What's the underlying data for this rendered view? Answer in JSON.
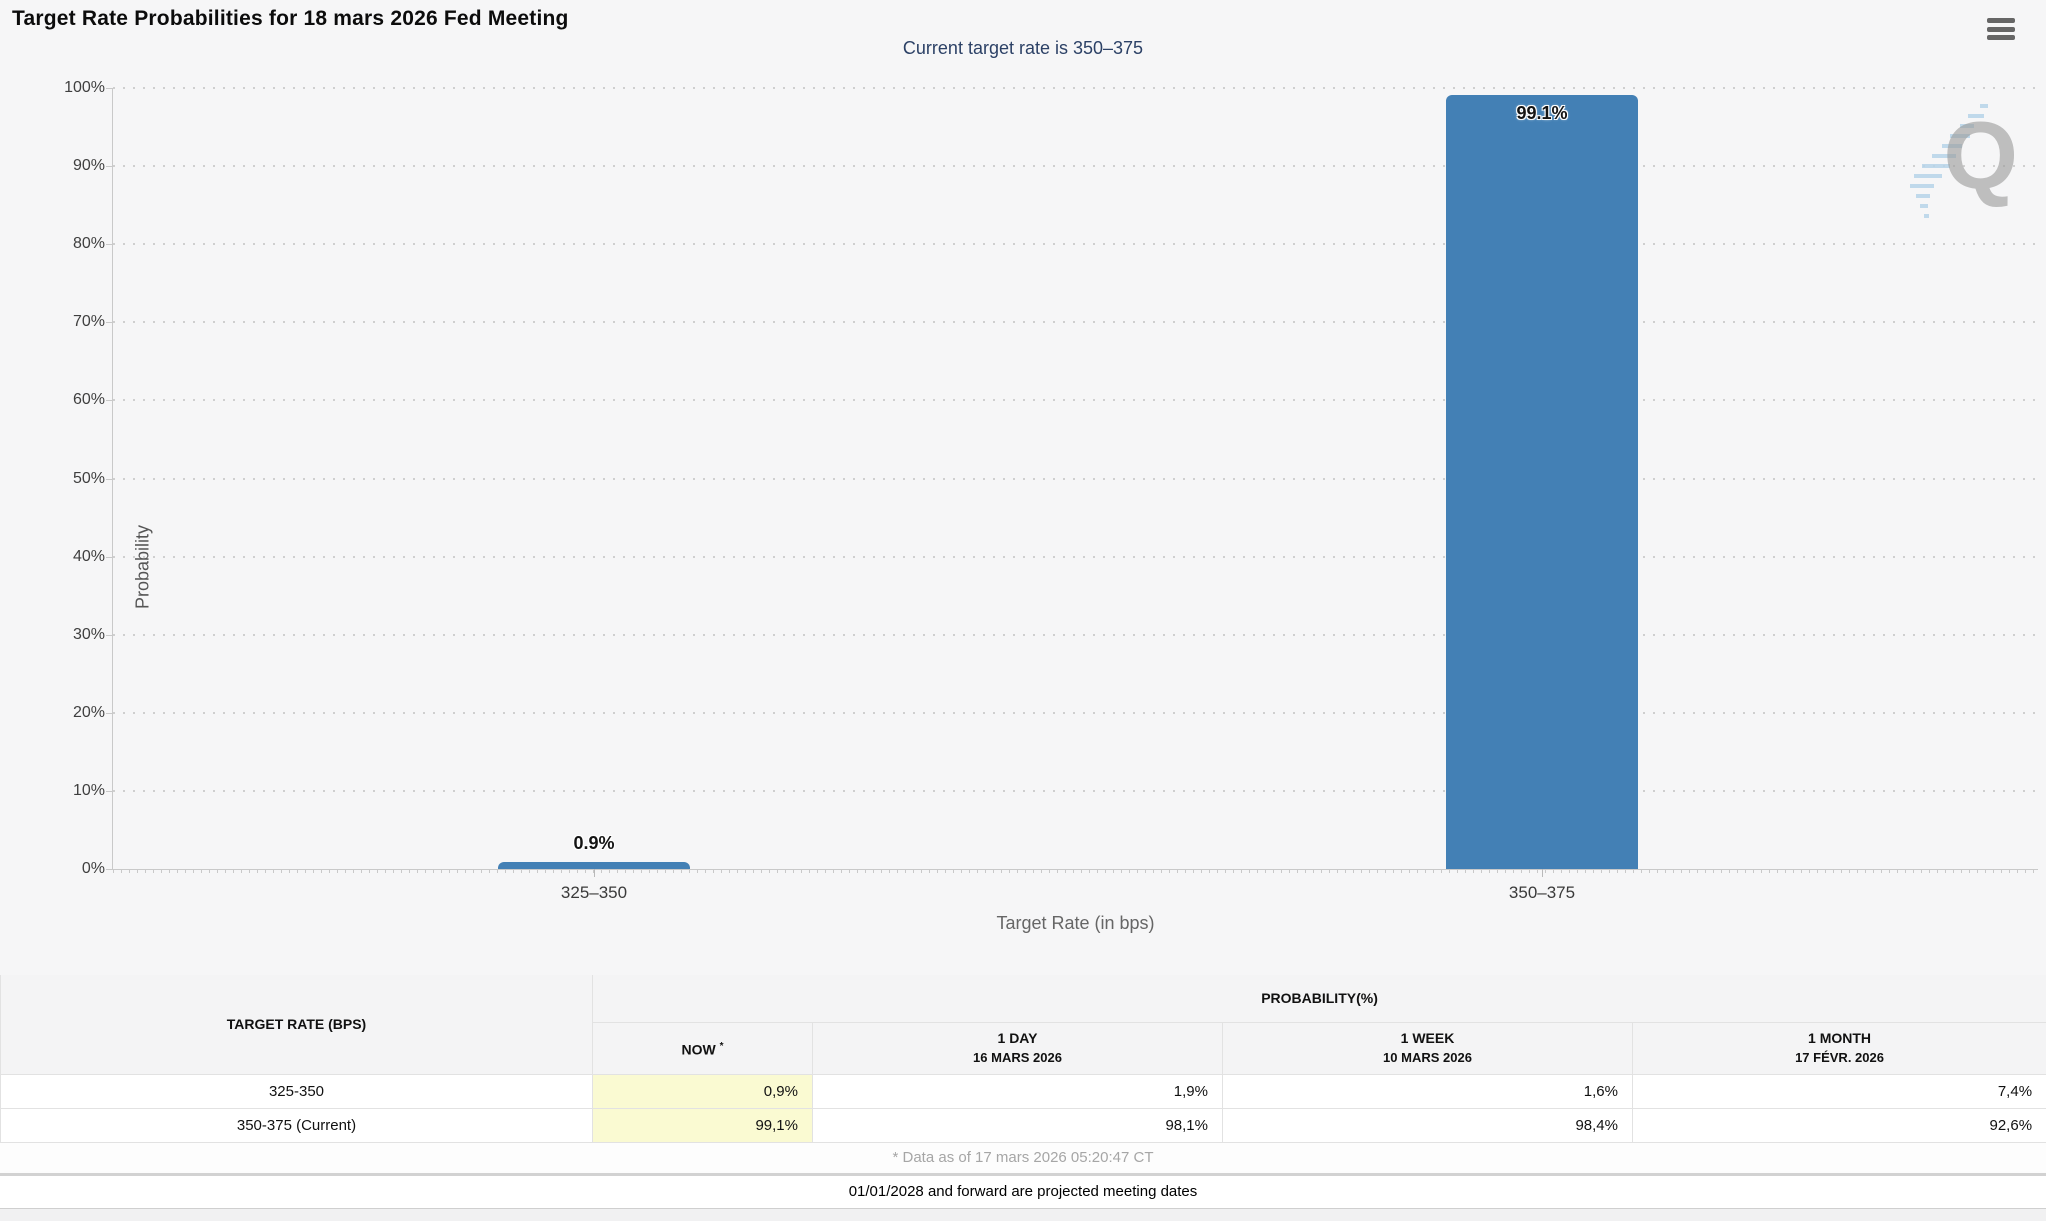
{
  "header": {
    "title": "Target Rate Probabilities for 18 mars 2026 Fed Meeting"
  },
  "chart": {
    "subtitle": "Current target rate is 350–375",
    "watermark_letter": "Q"
  },
  "chart_data": {
    "type": "bar",
    "title": "Target Rate Probabilities for 18 mars 2026 Fed Meeting",
    "subtitle": "Current target rate is 350–375",
    "categories": [
      "325–350",
      "350–375"
    ],
    "values": [
      0.9,
      99.1
    ],
    "value_labels": [
      "0.9%",
      "99.1%"
    ],
    "xlabel": "Target Rate (in bps)",
    "ylabel": "Probability",
    "ylim": [
      0,
      100
    ],
    "ytick_step": 10,
    "ytick_suffix": "%",
    "grid": "horizontal-dotted",
    "legend": "none",
    "bar_color": "#4380b5"
  },
  "table": {
    "target_rate_header": "TARGET RATE (BPS)",
    "probability_header": "PROBABILITY(%)",
    "now_label": "NOW",
    "now_footnote_marker": "*",
    "period_columns": [
      {
        "period": "1 DAY",
        "date": "16 MARS 2026"
      },
      {
        "period": "1 WEEK",
        "date": "10 MARS 2026"
      },
      {
        "period": "1 MONTH",
        "date": "17 FÉVR. 2026"
      }
    ],
    "rows": [
      {
        "rate": "325-350",
        "now": "0,9%",
        "one_day": "1,9%",
        "one_week": "1,6%",
        "one_month": "7,4%"
      },
      {
        "rate": "350-375 (Current)",
        "now": "99,1%",
        "one_day": "98,1%",
        "one_week": "98,4%",
        "one_month": "92,6%"
      }
    ],
    "footnote": "* Data as of 17 mars 2026 05:20:47 CT"
  },
  "footer": {
    "projected_note": "01/01/2028 and forward are projected meeting dates"
  },
  "colors": {
    "bar": "#4380b5",
    "subtitle_text": "#2c4166",
    "now_column_highlight": "#fafad2"
  }
}
